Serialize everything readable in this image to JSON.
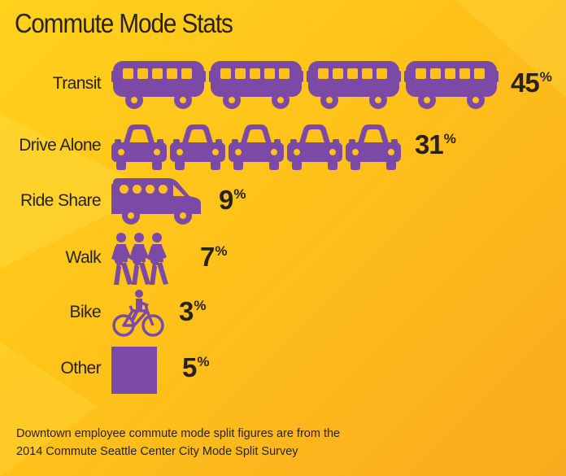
{
  "title": "Commute Mode Stats",
  "colors": {
    "icon": "#7b4aa6",
    "text": "#2a2218",
    "background": "#ffc21a"
  },
  "chart_data": {
    "type": "pictograph",
    "title": "Commute Mode Stats",
    "categories": [
      "Transit",
      "Drive Alone",
      "Ride Share",
      "Walk",
      "Bike",
      "Other"
    ],
    "values": [
      45,
      31,
      9,
      7,
      3,
      5
    ],
    "value_labels": [
      "45",
      "31",
      "9",
      "7",
      "3",
      "5"
    ],
    "unit": "%",
    "icons": [
      "bus-icon",
      "car-icon",
      "van-icon",
      "walkers-icon",
      "bicycle-icon",
      "square-icon"
    ],
    "icon_counts": [
      4,
      5,
      1,
      1,
      1,
      1
    ]
  },
  "footnote": {
    "line1": "Downtown employee commute mode split figures are from the",
    "line2": "2014 Commute Seattle Center City Mode Split Survey"
  }
}
